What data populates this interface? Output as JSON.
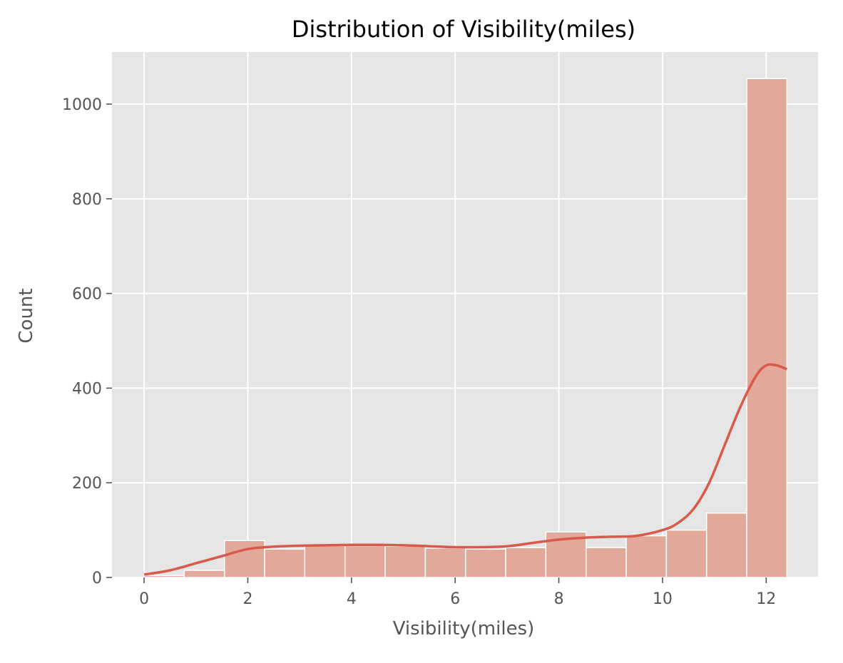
{
  "chart_data": {
    "type": "bar",
    "title": "Distribution of Visibility(miles)",
    "xlabel": "Visibility(miles)",
    "ylabel": "Count",
    "xlim": [
      -0.62,
      13.0
    ],
    "ylim": [
      0,
      1110
    ],
    "xticks": [
      0,
      2,
      4,
      6,
      8,
      10,
      12
    ],
    "yticks": [
      0,
      200,
      400,
      600,
      800,
      1000
    ],
    "grid": true,
    "background": "#e5e5e5",
    "grid_color": "#ffffff",
    "bar_color": "#e2a89a",
    "bar_edge_color": "#ffffff",
    "kde_color": "#d9594a",
    "bins": [
      {
        "x0": 0.0,
        "x1": 0.775,
        "count": 4
      },
      {
        "x0": 0.775,
        "x1": 1.55,
        "count": 15
      },
      {
        "x0": 1.55,
        "x1": 2.325,
        "count": 78
      },
      {
        "x0": 2.325,
        "x1": 3.1,
        "count": 60
      },
      {
        "x0": 3.1,
        "x1": 3.875,
        "count": 67
      },
      {
        "x0": 3.875,
        "x1": 4.65,
        "count": 67
      },
      {
        "x0": 4.65,
        "x1": 5.425,
        "count": 66
      },
      {
        "x0": 5.425,
        "x1": 6.2,
        "count": 62
      },
      {
        "x0": 6.2,
        "x1": 6.975,
        "count": 60
      },
      {
        "x0": 6.975,
        "x1": 7.75,
        "count": 63
      },
      {
        "x0": 7.75,
        "x1": 8.525,
        "count": 96
      },
      {
        "x0": 8.525,
        "x1": 9.3,
        "count": 63
      },
      {
        "x0": 9.3,
        "x1": 10.075,
        "count": 88
      },
      {
        "x0": 10.075,
        "x1": 10.85,
        "count": 100
      },
      {
        "x0": 10.85,
        "x1": 11.625,
        "count": 136
      },
      {
        "x0": 11.625,
        "x1": 12.4,
        "count": 1054
      }
    ],
    "kde": {
      "x": [
        0,
        0.5,
        1.0,
        1.5,
        2.0,
        2.5,
        3.0,
        3.5,
        4.0,
        4.5,
        5.0,
        5.5,
        6.0,
        6.5,
        7.0,
        7.5,
        8.0,
        8.5,
        9.0,
        9.5,
        10.0,
        10.3,
        10.6,
        10.9,
        11.2,
        11.5,
        11.8,
        12.0,
        12.2,
        12.4
      ],
      "y": [
        6,
        15,
        30,
        45,
        60,
        65,
        67,
        68,
        69,
        69,
        68,
        66,
        64,
        64,
        66,
        73,
        80,
        84,
        86,
        88,
        100,
        115,
        145,
        200,
        280,
        360,
        425,
        448,
        448,
        440
      ]
    }
  }
}
